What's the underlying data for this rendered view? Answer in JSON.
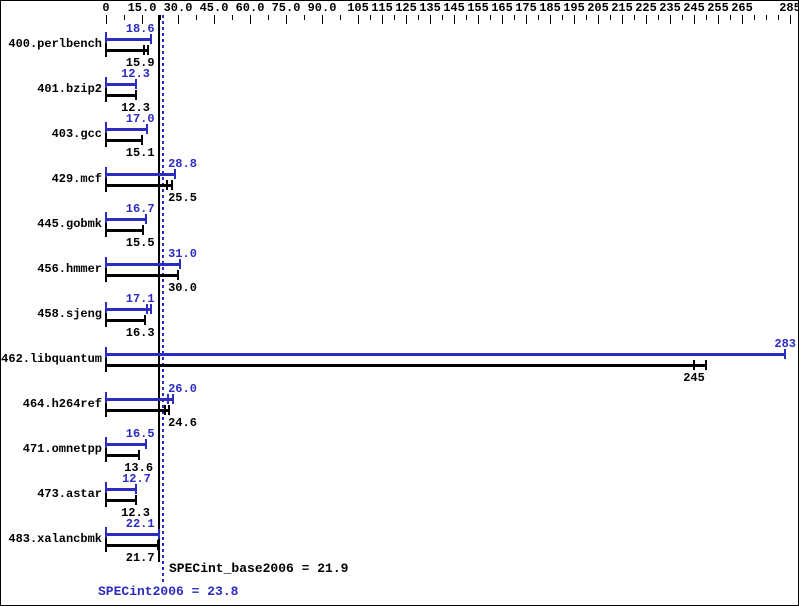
{
  "chart_data": {
    "type": "bar",
    "orientation": "horizontal",
    "xlim": [
      0,
      285
    ],
    "grid": false,
    "series": [
      {
        "key": "peak",
        "name": "SPECint2006",
        "color": "#2c2cc0"
      },
      {
        "key": "base",
        "name": "SPECint_base2006",
        "color": "#000000"
      }
    ],
    "benchmarks": [
      {
        "name": "400.perlbench",
        "peak": 18.6,
        "base": 15.9,
        "base_runs": true
      },
      {
        "name": "401.bzip2",
        "peak": 12.3,
        "base": 12.3
      },
      {
        "name": "403.gcc",
        "peak": 17.0,
        "base": 15.1
      },
      {
        "name": "429.mcf",
        "peak": 28.8,
        "base": 25.5,
        "base_runs": true
      },
      {
        "name": "445.gobmk",
        "peak": 16.7,
        "base": 15.5
      },
      {
        "name": "456.hmmer",
        "peak": 31.0,
        "base": 30.0
      },
      {
        "name": "458.sjeng",
        "peak": 17.1,
        "base": 16.3,
        "peak_runs": true
      },
      {
        "name": "462.libquantum",
        "peak": 283,
        "base": 245,
        "base_runs": true,
        "base_runs_spread": 5
      },
      {
        "name": "464.h264ref",
        "peak": 26.0,
        "base": 24.6,
        "peak_runs": true,
        "base_runs": true
      },
      {
        "name": "471.omnetpp",
        "peak": 16.5,
        "base": 13.6
      },
      {
        "name": "473.astar",
        "peak": 12.7,
        "base": 12.3
      },
      {
        "name": "483.xalancbmk",
        "peak": 22.1,
        "base": 21.7
      }
    ],
    "axis_ticks": [
      {
        "v": 0,
        "label": "0"
      },
      {
        "v": 7.5
      },
      {
        "v": 15,
        "label": "15.0"
      },
      {
        "v": 22.5
      },
      {
        "v": 30,
        "label": "30.0"
      },
      {
        "v": 37.5
      },
      {
        "v": 45,
        "label": "45.0"
      },
      {
        "v": 52.5
      },
      {
        "v": 60,
        "label": "60.0"
      },
      {
        "v": 67.5
      },
      {
        "v": 75,
        "label": "75.0"
      },
      {
        "v": 82.5
      },
      {
        "v": 90,
        "label": "90.0"
      },
      {
        "v": 97.5
      },
      {
        "v": 105,
        "label": "105"
      },
      {
        "v": 110
      },
      {
        "v": 115,
        "label": "115"
      },
      {
        "v": 120
      },
      {
        "v": 125,
        "label": "125"
      },
      {
        "v": 130
      },
      {
        "v": 135,
        "label": "135"
      },
      {
        "v": 140
      },
      {
        "v": 145,
        "label": "145"
      },
      {
        "v": 150
      },
      {
        "v": 155,
        "label": "155"
      },
      {
        "v": 160
      },
      {
        "v": 165,
        "label": "165"
      },
      {
        "v": 170
      },
      {
        "v": 175,
        "label": "175"
      },
      {
        "v": 180
      },
      {
        "v": 185,
        "label": "185"
      },
      {
        "v": 190
      },
      {
        "v": 195,
        "label": "195"
      },
      {
        "v": 200
      },
      {
        "v": 205,
        "label": "205"
      },
      {
        "v": 210
      },
      {
        "v": 215,
        "label": "215"
      },
      {
        "v": 220
      },
      {
        "v": 225,
        "label": "225"
      },
      {
        "v": 230
      },
      {
        "v": 235,
        "label": "235"
      },
      {
        "v": 240
      },
      {
        "v": 245,
        "label": "245"
      },
      {
        "v": 250
      },
      {
        "v": 255,
        "label": "255"
      },
      {
        "v": 260
      },
      {
        "v": 265,
        "label": "265"
      },
      {
        "v": 270
      },
      {
        "v": 275
      },
      {
        "v": 280
      },
      {
        "v": 285,
        "label": "285"
      }
    ],
    "reference_lines": [
      {
        "value": 21.9,
        "label": "SPECint_base2006 = 21.9",
        "style": "solid",
        "color": "#000000"
      },
      {
        "value": 23.8,
        "label": "SPECint2006 = 23.8",
        "style": "dotted",
        "color": "#2c2cc0"
      }
    ]
  }
}
